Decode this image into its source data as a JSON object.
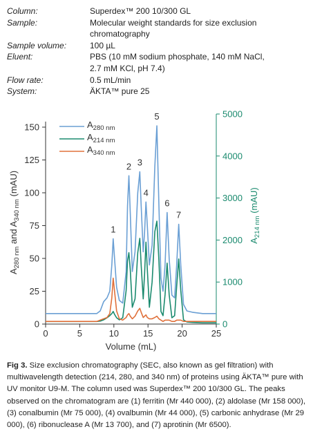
{
  "header": {
    "rows": [
      [
        "Column:",
        "Superdex™ 200 10/300 GL"
      ],
      [
        "Sample:",
        "Molecular weight standards for size exclusion chromatography"
      ],
      [
        "Sample volume:",
        "100 µL"
      ],
      [
        "Eluent:",
        "PBS (10 mM sodium phosphate, 140 mM NaCl, 2.7 mM KCl, pH 7.4)"
      ],
      [
        "Flow rate:",
        "0.5 mL/min"
      ],
      [
        "System:",
        "ÄKTA™ pure 25"
      ]
    ]
  },
  "chart_data": {
    "type": "line",
    "xlabel": "Volume (mL)",
    "ylabel": "A280 nm and A340 nm (mAU)",
    "y2label": "A214 nm (mAU)",
    "xlim": [
      0,
      25
    ],
    "xticks": [
      0,
      5,
      10,
      15,
      20,
      25
    ],
    "ylim": [
      0,
      160
    ],
    "yticks": [
      0,
      25,
      50,
      75,
      100,
      125,
      150
    ],
    "y2lim": [
      0,
      5000
    ],
    "y2ticks": [
      0,
      1000,
      2000,
      3000,
      4000,
      5000
    ],
    "y2color": "#1a8a6e",
    "grid": false,
    "legend": "upper left",
    "x": [
      0,
      2,
      4,
      6,
      7,
      7.5,
      8,
      8.5,
      9,
      9.4,
      9.7,
      9.9,
      10.1,
      10.4,
      10.8,
      11.3,
      11.8,
      12.0,
      12.2,
      12.4,
      12.7,
      13.1,
      13.5,
      13.8,
      14.0,
      14.3,
      14.5,
      14.7,
      14.9,
      15.2,
      15.6,
      16.0,
      16.3,
      16.6,
      16.9,
      17.2,
      17.5,
      17.8,
      18.1,
      18.5,
      18.9,
      19.2,
      19.5,
      19.8,
      20.2,
      20.7,
      21.5,
      23,
      25
    ],
    "series": [
      {
        "name": "A280 nm",
        "color": "#6a9fd4",
        "values": [
          8,
          8,
          8,
          8,
          8,
          8,
          10,
          17,
          20,
          25,
          45,
          65,
          50,
          28,
          18,
          16,
          40,
          90,
          113,
          85,
          40,
          55,
          100,
          116,
          90,
          55,
          70,
          93,
          75,
          45,
          60,
          120,
          151,
          90,
          35,
          25,
          45,
          85,
          50,
          22,
          20,
          45,
          76,
          45,
          15,
          10,
          9,
          8,
          8
        ]
      },
      {
        "name": "A214 nm",
        "color": "#1a8a6e",
        "axis": "y2",
        "values": [
          60,
          60,
          60,
          60,
          60,
          60,
          70,
          100,
          150,
          200,
          250,
          300,
          230,
          150,
          100,
          150,
          800,
          1500,
          1700,
          1300,
          400,
          600,
          1700,
          2040,
          1400,
          600,
          1200,
          1950,
          1300,
          400,
          1000,
          2200,
          2450,
          1500,
          300,
          200,
          700,
          1450,
          700,
          150,
          200,
          900,
          1550,
          800,
          100,
          50,
          40,
          30,
          30
        ]
      },
      {
        "name": "A340 nm",
        "color": "#e0703a",
        "values": [
          2,
          2,
          2,
          2,
          2,
          2,
          3,
          4,
          5,
          8,
          20,
          35,
          25,
          10,
          4,
          3,
          5,
          7,
          8,
          6,
          4,
          6,
          10,
          12,
          9,
          5,
          6,
          7,
          5,
          4,
          4,
          5,
          6,
          4,
          3,
          2,
          3,
          3,
          3,
          2,
          2,
          3,
          3,
          3,
          2,
          2,
          2,
          2,
          2
        ]
      }
    ],
    "annotations": [
      {
        "text": "1",
        "x": 9.9,
        "y": 65
      },
      {
        "text": "2",
        "x": 12.2,
        "y": 113
      },
      {
        "text": "3",
        "x": 13.8,
        "y": 116
      },
      {
        "text": "4",
        "x": 14.7,
        "y": 93
      },
      {
        "text": "5",
        "x": 16.3,
        "y": 151
      },
      {
        "text": "6",
        "x": 17.8,
        "y": 85
      },
      {
        "text": "7",
        "x": 19.5,
        "y": 76
      }
    ]
  },
  "caption": {
    "label": "Fig 3.",
    "text": "Size exclusion chromatography (SEC, also known as gel filtration) with multiwavelength detection (214, 280, and 340 nm) of proteins using ÄKTA™ pure with UV monitor U9-M. The column used was Superdex™ 200 10/300 GL. The peaks observed on the chromatogram are (1) ferritin (Mr 440 000), (2) aldolase (Mr 158 000), (3) conalbumin (Mr 75 000), (4) ovalbumin (Mr 44 000), (5) carbonic anhydrase (Mr 29 000), (6) ribonuclease A (Mr 13 700), and (7) aprotinin (Mr 6500)."
  }
}
